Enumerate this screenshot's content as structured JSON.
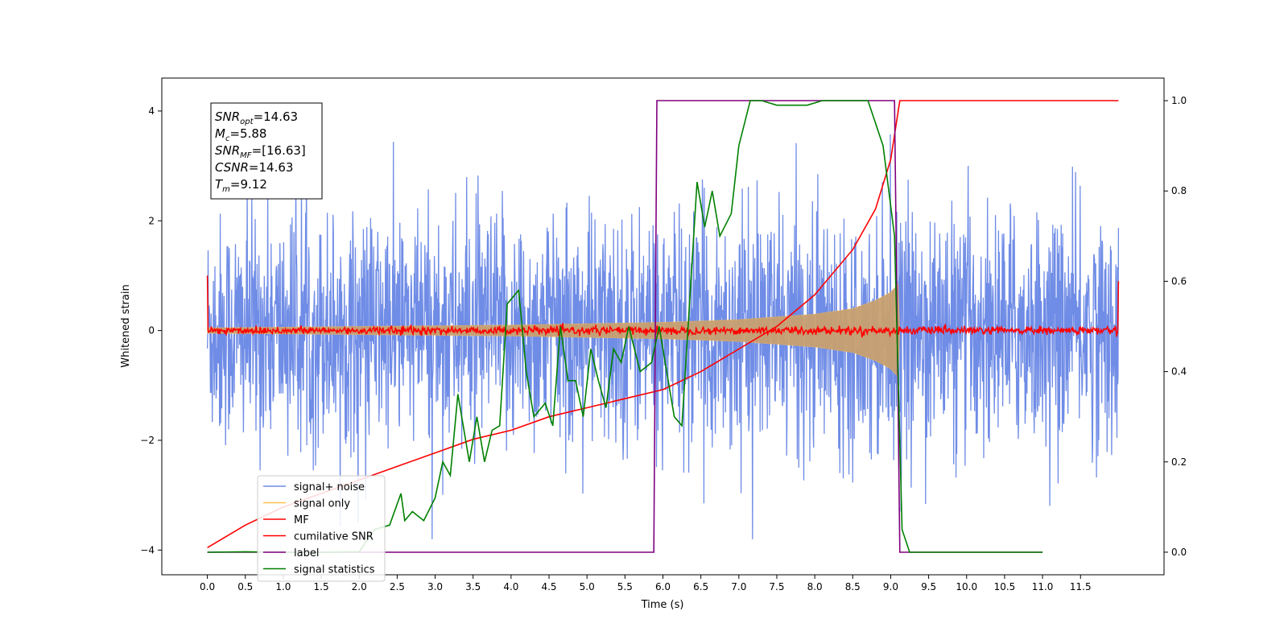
{
  "chart_data": {
    "type": "line",
    "title": "",
    "xlabel": "Time (s)",
    "ylabel": "Whitened strain",
    "xlim": [
      -0.6,
      12.6
    ],
    "ylim": [
      -4.45,
      4.6
    ],
    "ylim_right": [
      -0.05,
      1.05
    ],
    "x_ticks": [
      0.0,
      0.5,
      1.0,
      1.5,
      2.0,
      2.5,
      3.0,
      3.5,
      4.0,
      4.5,
      5.0,
      5.5,
      6.0,
      6.5,
      7.0,
      7.5,
      8.0,
      8.5,
      9.0,
      9.5,
      10.0,
      10.5,
      11.0,
      11.5
    ],
    "y_ticks": [
      -4,
      -2,
      0,
      2,
      4
    ],
    "y_ticks_right": [
      0.0,
      0.2,
      0.4,
      0.6,
      0.8,
      1.0
    ],
    "grid": false,
    "legend_position": "lower-left",
    "stats_box": [
      {
        "base": "SNR",
        "sub": "opt",
        "value": "=14.63"
      },
      {
        "base": "M",
        "sub": "c",
        "value": "=5.88"
      },
      {
        "base": "SNR",
        "sub": "MF",
        "value": "=[16.63]"
      },
      {
        "base": "CSNR",
        "sub": "",
        "value": "=14.63"
      },
      {
        "base": "T",
        "sub": "m",
        "value": "=9.12"
      }
    ],
    "series": [
      {
        "name": "signal+ noise",
        "axis": "left",
        "color": "#6f8ce6",
        "kind": "noisy_band",
        "x_range": [
          0.0,
          12.0
        ],
        "typical_envelope": 2.2,
        "peak_envelope": 3.8
      },
      {
        "name": "signal only",
        "axis": "left",
        "color": "#ffc04d",
        "kind": "chirp_envelope",
        "x_range": [
          0.0,
          9.12
        ],
        "envelope": [
          [
            0.0,
            0.05
          ],
          [
            4.0,
            0.1
          ],
          [
            6.0,
            0.15
          ],
          [
            7.0,
            0.2
          ],
          [
            8.0,
            0.3
          ],
          [
            8.5,
            0.4
          ],
          [
            8.8,
            0.55
          ],
          [
            9.0,
            0.7
          ],
          [
            9.1,
            0.85
          ],
          [
            9.12,
            0.0
          ]
        ]
      },
      {
        "name": "MF",
        "axis": "left",
        "color": "#ff0000",
        "kind": "noisy_line",
        "x_range": [
          0.0,
          12.0
        ],
        "base": 0.0,
        "noise_amplitude": 0.08,
        "start_value": 1.0,
        "end_value": 0.9
      },
      {
        "name": "cumilative SNR",
        "axis": "right",
        "color": "#ff0000",
        "kind": "line",
        "points": [
          [
            0.0,
            0.01
          ],
          [
            0.5,
            0.06
          ],
          [
            1.0,
            0.1
          ],
          [
            1.5,
            0.13
          ],
          [
            2.0,
            0.16
          ],
          [
            2.5,
            0.19
          ],
          [
            3.0,
            0.22
          ],
          [
            3.5,
            0.25
          ],
          [
            4.0,
            0.27
          ],
          [
            4.5,
            0.3
          ],
          [
            5.0,
            0.32
          ],
          [
            5.5,
            0.34
          ],
          [
            6.0,
            0.36
          ],
          [
            6.5,
            0.4
          ],
          [
            7.0,
            0.45
          ],
          [
            7.5,
            0.5
          ],
          [
            8.0,
            0.57
          ],
          [
            8.5,
            0.67
          ],
          [
            8.8,
            0.76
          ],
          [
            9.0,
            0.87
          ],
          [
            9.12,
            1.0
          ],
          [
            12.0,
            1.0
          ]
        ]
      },
      {
        "name": "label",
        "axis": "right",
        "color": "#800080",
        "kind": "line",
        "points": [
          [
            0.0,
            0.0
          ],
          [
            5.88,
            0.0
          ],
          [
            5.92,
            1.0
          ],
          [
            9.05,
            1.0
          ],
          [
            9.12,
            0.0
          ],
          [
            11.0,
            0.0
          ]
        ]
      },
      {
        "name": "signal statistics",
        "axis": "right",
        "color": "#008000",
        "kind": "line",
        "points": [
          [
            0.0,
            0.0
          ],
          [
            0.5,
            0.001
          ],
          [
            1.0,
            0.0
          ],
          [
            1.5,
            0.0
          ],
          [
            2.0,
            0.001
          ],
          [
            2.2,
            0.05
          ],
          [
            2.4,
            0.06
          ],
          [
            2.55,
            0.13
          ],
          [
            2.6,
            0.07
          ],
          [
            2.7,
            0.09
          ],
          [
            2.85,
            0.07
          ],
          [
            3.0,
            0.12
          ],
          [
            3.1,
            0.2
          ],
          [
            3.2,
            0.17
          ],
          [
            3.3,
            0.35
          ],
          [
            3.45,
            0.2
          ],
          [
            3.55,
            0.3
          ],
          [
            3.65,
            0.2
          ],
          [
            3.75,
            0.27
          ],
          [
            3.85,
            0.28
          ],
          [
            3.95,
            0.55
          ],
          [
            4.1,
            0.58
          ],
          [
            4.2,
            0.4
          ],
          [
            4.3,
            0.3
          ],
          [
            4.45,
            0.33
          ],
          [
            4.55,
            0.28
          ],
          [
            4.65,
            0.5
          ],
          [
            4.75,
            0.38
          ],
          [
            4.85,
            0.38
          ],
          [
            4.95,
            0.3
          ],
          [
            5.05,
            0.45
          ],
          [
            5.15,
            0.38
          ],
          [
            5.25,
            0.32
          ],
          [
            5.35,
            0.45
          ],
          [
            5.45,
            0.42
          ],
          [
            5.55,
            0.5
          ],
          [
            5.7,
            0.4
          ],
          [
            5.85,
            0.42
          ],
          [
            5.95,
            0.5
          ],
          [
            6.05,
            0.4
          ],
          [
            6.15,
            0.3
          ],
          [
            6.25,
            0.28
          ],
          [
            6.45,
            0.82
          ],
          [
            6.55,
            0.72
          ],
          [
            6.65,
            0.8
          ],
          [
            6.75,
            0.7
          ],
          [
            6.9,
            0.75
          ],
          [
            7.0,
            0.9
          ],
          [
            7.15,
            1.0
          ],
          [
            7.3,
            1.0
          ],
          [
            7.5,
            0.99
          ],
          [
            7.7,
            0.99
          ],
          [
            7.9,
            0.99
          ],
          [
            8.1,
            1.0
          ],
          [
            8.4,
            1.0
          ],
          [
            8.7,
            1.0
          ],
          [
            8.9,
            0.9
          ],
          [
            9.05,
            0.7
          ],
          [
            9.15,
            0.05
          ],
          [
            9.25,
            0.0
          ],
          [
            11.0,
            0.0
          ]
        ]
      }
    ]
  }
}
